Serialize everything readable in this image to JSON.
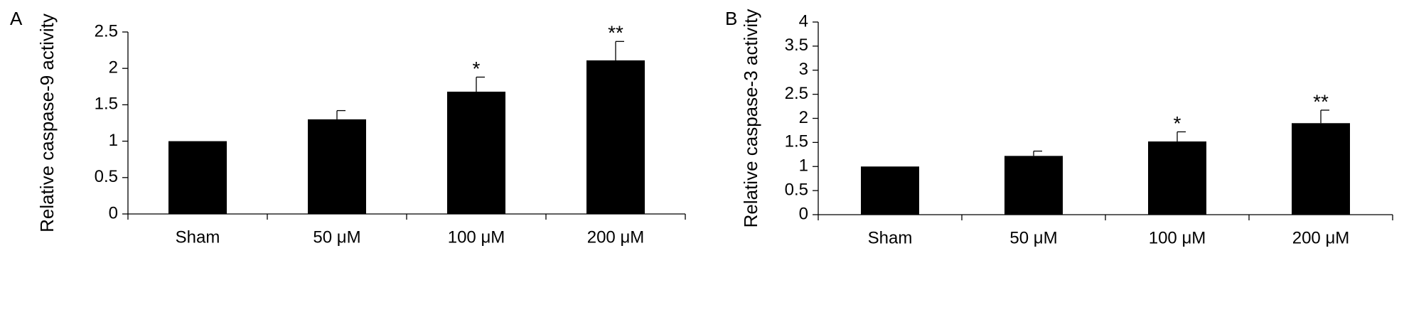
{
  "chart_data": [
    {
      "type": "bar",
      "label": "A",
      "y_label": "Relative caspase-9 activity",
      "categories": [
        "Sham",
        "50 μM",
        "100 μM",
        "200 μM"
      ],
      "values": [
        1.0,
        1.3,
        1.68,
        2.11
      ],
      "errors": [
        null,
        0.12,
        0.2,
        0.26
      ],
      "significance": [
        null,
        null,
        "*",
        "**"
      ],
      "color": "#000000",
      "ylim": [
        0,
        2.5
      ],
      "yticks": [
        0,
        0.5,
        1,
        1.5,
        2,
        2.5
      ]
    },
    {
      "type": "bar",
      "label": "B",
      "y_label": "Relative caspase-3 activity",
      "categories": [
        "Sham",
        "50 μM",
        "100 μM",
        "200 μM"
      ],
      "values": [
        1.0,
        1.22,
        1.52,
        1.9
      ],
      "errors": [
        null,
        0.1,
        0.2,
        0.27
      ],
      "significance": [
        null,
        null,
        "*",
        "**"
      ],
      "color": "#000000",
      "ylim": [
        0,
        4
      ],
      "yticks": [
        0,
        0.5,
        1,
        1.5,
        2,
        2.5,
        3,
        3.5,
        4
      ]
    }
  ]
}
